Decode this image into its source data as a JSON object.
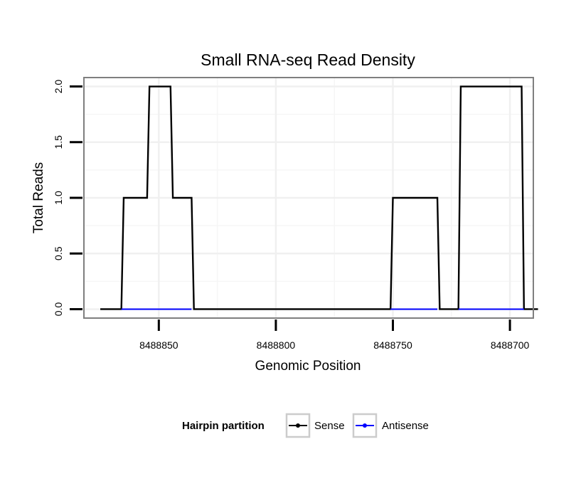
{
  "chart_data": {
    "type": "line",
    "title": "Small RNA-seq Read Density",
    "xlabel": "Genomic Position",
    "ylabel": "Total Reads",
    "x_reversed": true,
    "xlim": [
      8488882,
      8488690
    ],
    "ylim": [
      -0.08,
      2.08
    ],
    "xticks": [
      8488850,
      8488800,
      8488750,
      8488700
    ],
    "xtick_labels": [
      "8488850",
      "8488800",
      "8488750",
      "8488700"
    ],
    "yticks": [
      0.0,
      0.5,
      1.0,
      1.5,
      2.0
    ],
    "ytick_labels": [
      "0.0",
      "0.5",
      "1.0",
      "1.5",
      "2.0"
    ],
    "grid": true,
    "legend": {
      "title": "Hairpin partition",
      "position": "bottom",
      "entries": [
        "Sense",
        "Antisense"
      ]
    },
    "series": [
      {
        "name": "Sense",
        "color": "#000000",
        "x": [
          8488875,
          8488866,
          8488865,
          8488855,
          8488854,
          8488845,
          8488844,
          8488836,
          8488835,
          8488751,
          8488750,
          8488731,
          8488730,
          8488722,
          8488721,
          8488695,
          8488694,
          8488688
        ],
        "y": [
          0,
          0,
          1,
          1,
          2,
          2,
          1,
          1,
          0,
          0,
          1,
          1,
          0,
          0,
          2,
          2,
          0,
          0
        ]
      },
      {
        "name": "Antisense",
        "color": "#0000ff",
        "x": [
          8488866,
          8488836,
          8488751,
          8488731,
          8488722,
          8488694
        ],
        "y": [
          0,
          0,
          0,
          0,
          0,
          0
        ],
        "segments": [
          [
            8488866,
            8488836
          ],
          [
            8488751,
            8488731
          ],
          [
            8488722,
            8488694
          ]
        ]
      }
    ]
  }
}
